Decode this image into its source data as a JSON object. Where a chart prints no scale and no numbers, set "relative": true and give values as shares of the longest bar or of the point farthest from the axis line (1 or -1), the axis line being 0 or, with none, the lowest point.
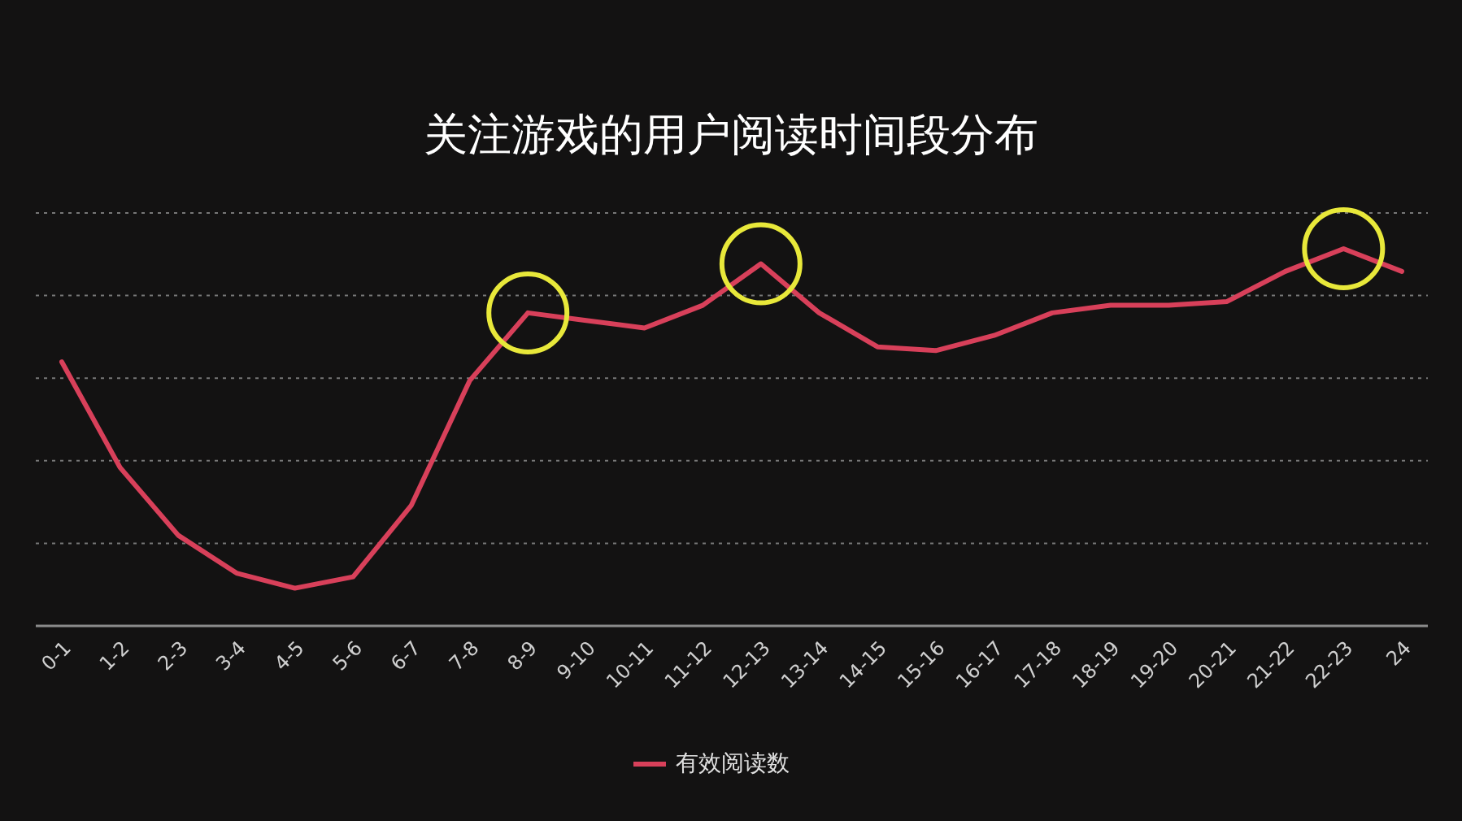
{
  "chart_data": {
    "type": "line",
    "title": "关注游戏的用户阅读时间段分布",
    "relative": true,
    "grid": "y",
    "legend": "bottom",
    "marker": "none",
    "categories": [
      "0-1",
      "1-2",
      "2-3",
      "3-4",
      "4-5",
      "5-6",
      "6-7",
      "7-8",
      "8-9",
      "9-10",
      "10-11",
      "11-12",
      "12-13",
      "13-14",
      "14-15",
      "15-16",
      "16-17",
      "17-18",
      "18-19",
      "19-20",
      "20-21",
      "21-22",
      "22-23",
      "24"
    ],
    "series": [
      {
        "name": "有效阅读数",
        "color": "#d8405a",
        "values": [
          0.7,
          0.42,
          0.24,
          0.14,
          0.1,
          0.13,
          0.32,
          0.65,
          0.83,
          0.81,
          0.79,
          0.85,
          0.96,
          0.83,
          0.74,
          0.73,
          0.77,
          0.83,
          0.85,
          0.85,
          0.86,
          0.94,
          1,
          0.94
        ]
      },
      {
        "type": "scatter",
        "marker": "circle",
        "color": "#e8e83a",
        "x": [
          "8-9",
          "12-13",
          "22-23"
        ],
        "values": [
          0.83,
          0.96,
          1
        ]
      }
    ]
  }
}
